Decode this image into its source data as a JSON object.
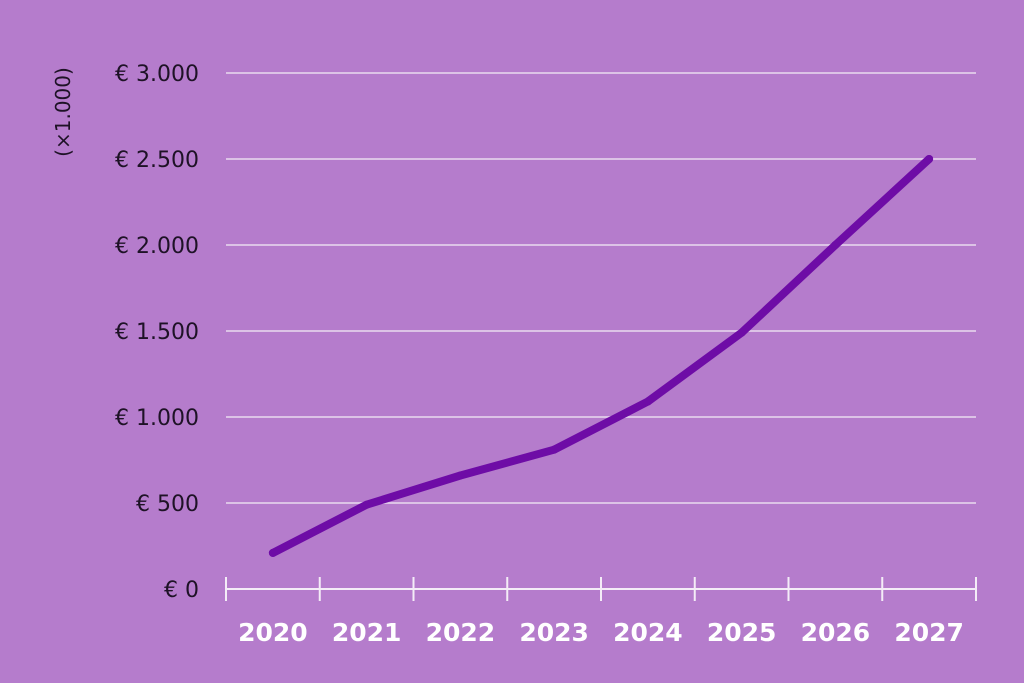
{
  "colors": {
    "background": "#b57ccc",
    "line": "#6e0ca6",
    "grid": "#dcc3e6",
    "axis": "#f4ecf7",
    "ytext": "#1e1226",
    "xtext": "#ffffff"
  },
  "chart_data": {
    "type": "line",
    "title": "",
    "xlabel": "",
    "ylabel": "",
    "unit_label": "(×1.000)",
    "categories": [
      "2020",
      "2021",
      "2022",
      "2023",
      "2024",
      "2025",
      "2026",
      "2027"
    ],
    "series": [
      {
        "values": [
          210,
          490,
          660,
          810,
          1090,
          1490,
          2000,
          2500
        ]
      }
    ],
    "ylim": [
      0,
      3000
    ],
    "yticks": [
      0,
      500,
      1000,
      1500,
      2000,
      2500,
      3000
    ],
    "ytick_labels": [
      "€ 0",
      "€ 500",
      "€ 1.000",
      "€ 1.500",
      "€ 2.000",
      "€ 2.500",
      "€ 3.000"
    ],
    "grid": true,
    "legend": "none"
  }
}
